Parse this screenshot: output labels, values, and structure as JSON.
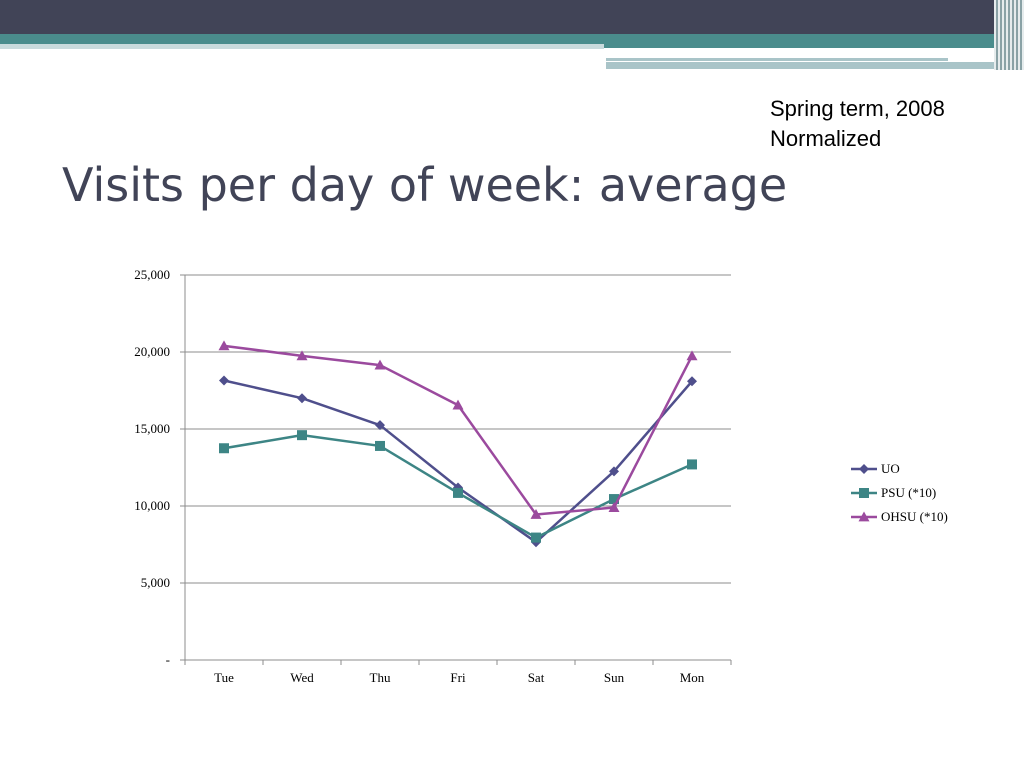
{
  "slide": {
    "title": "Visits per day of week: average",
    "note_line1": "Spring term, 2008",
    "note_line2": "Normalized"
  },
  "theme": {
    "band_dark": "#414457",
    "band_teal": "#4a8c8c",
    "band_light": "#a9c4c8"
  },
  "chart_data": {
    "type": "line",
    "categories": [
      "Tue",
      "Wed",
      "Thu",
      "Fri",
      "Sat",
      "Sun",
      "Mon"
    ],
    "ylim": [
      0,
      25000
    ],
    "yticks": [
      0,
      5000,
      10000,
      15000,
      20000,
      25000
    ],
    "ytick_labels": [
      "-",
      "5,000",
      "10,000",
      "15,000",
      "20,000",
      "25,000"
    ],
    "grid": true,
    "legend_position": "right",
    "series": [
      {
        "name": "UO",
        "color": "#4f4f8c",
        "marker": "diamond",
        "values": [
          18150,
          17000,
          15250,
          11200,
          7650,
          12250,
          18100
        ]
      },
      {
        "name": "PSU (*10)",
        "color": "#3d8585",
        "marker": "square",
        "values": [
          13750,
          14600,
          13900,
          10850,
          7950,
          10450,
          12700
        ]
      },
      {
        "name": "OHSU (*10)",
        "color": "#9b4a9e",
        "marker": "triangle",
        "values": [
          20400,
          19750,
          19150,
          16550,
          9450,
          9900,
          19750
        ]
      }
    ]
  }
}
